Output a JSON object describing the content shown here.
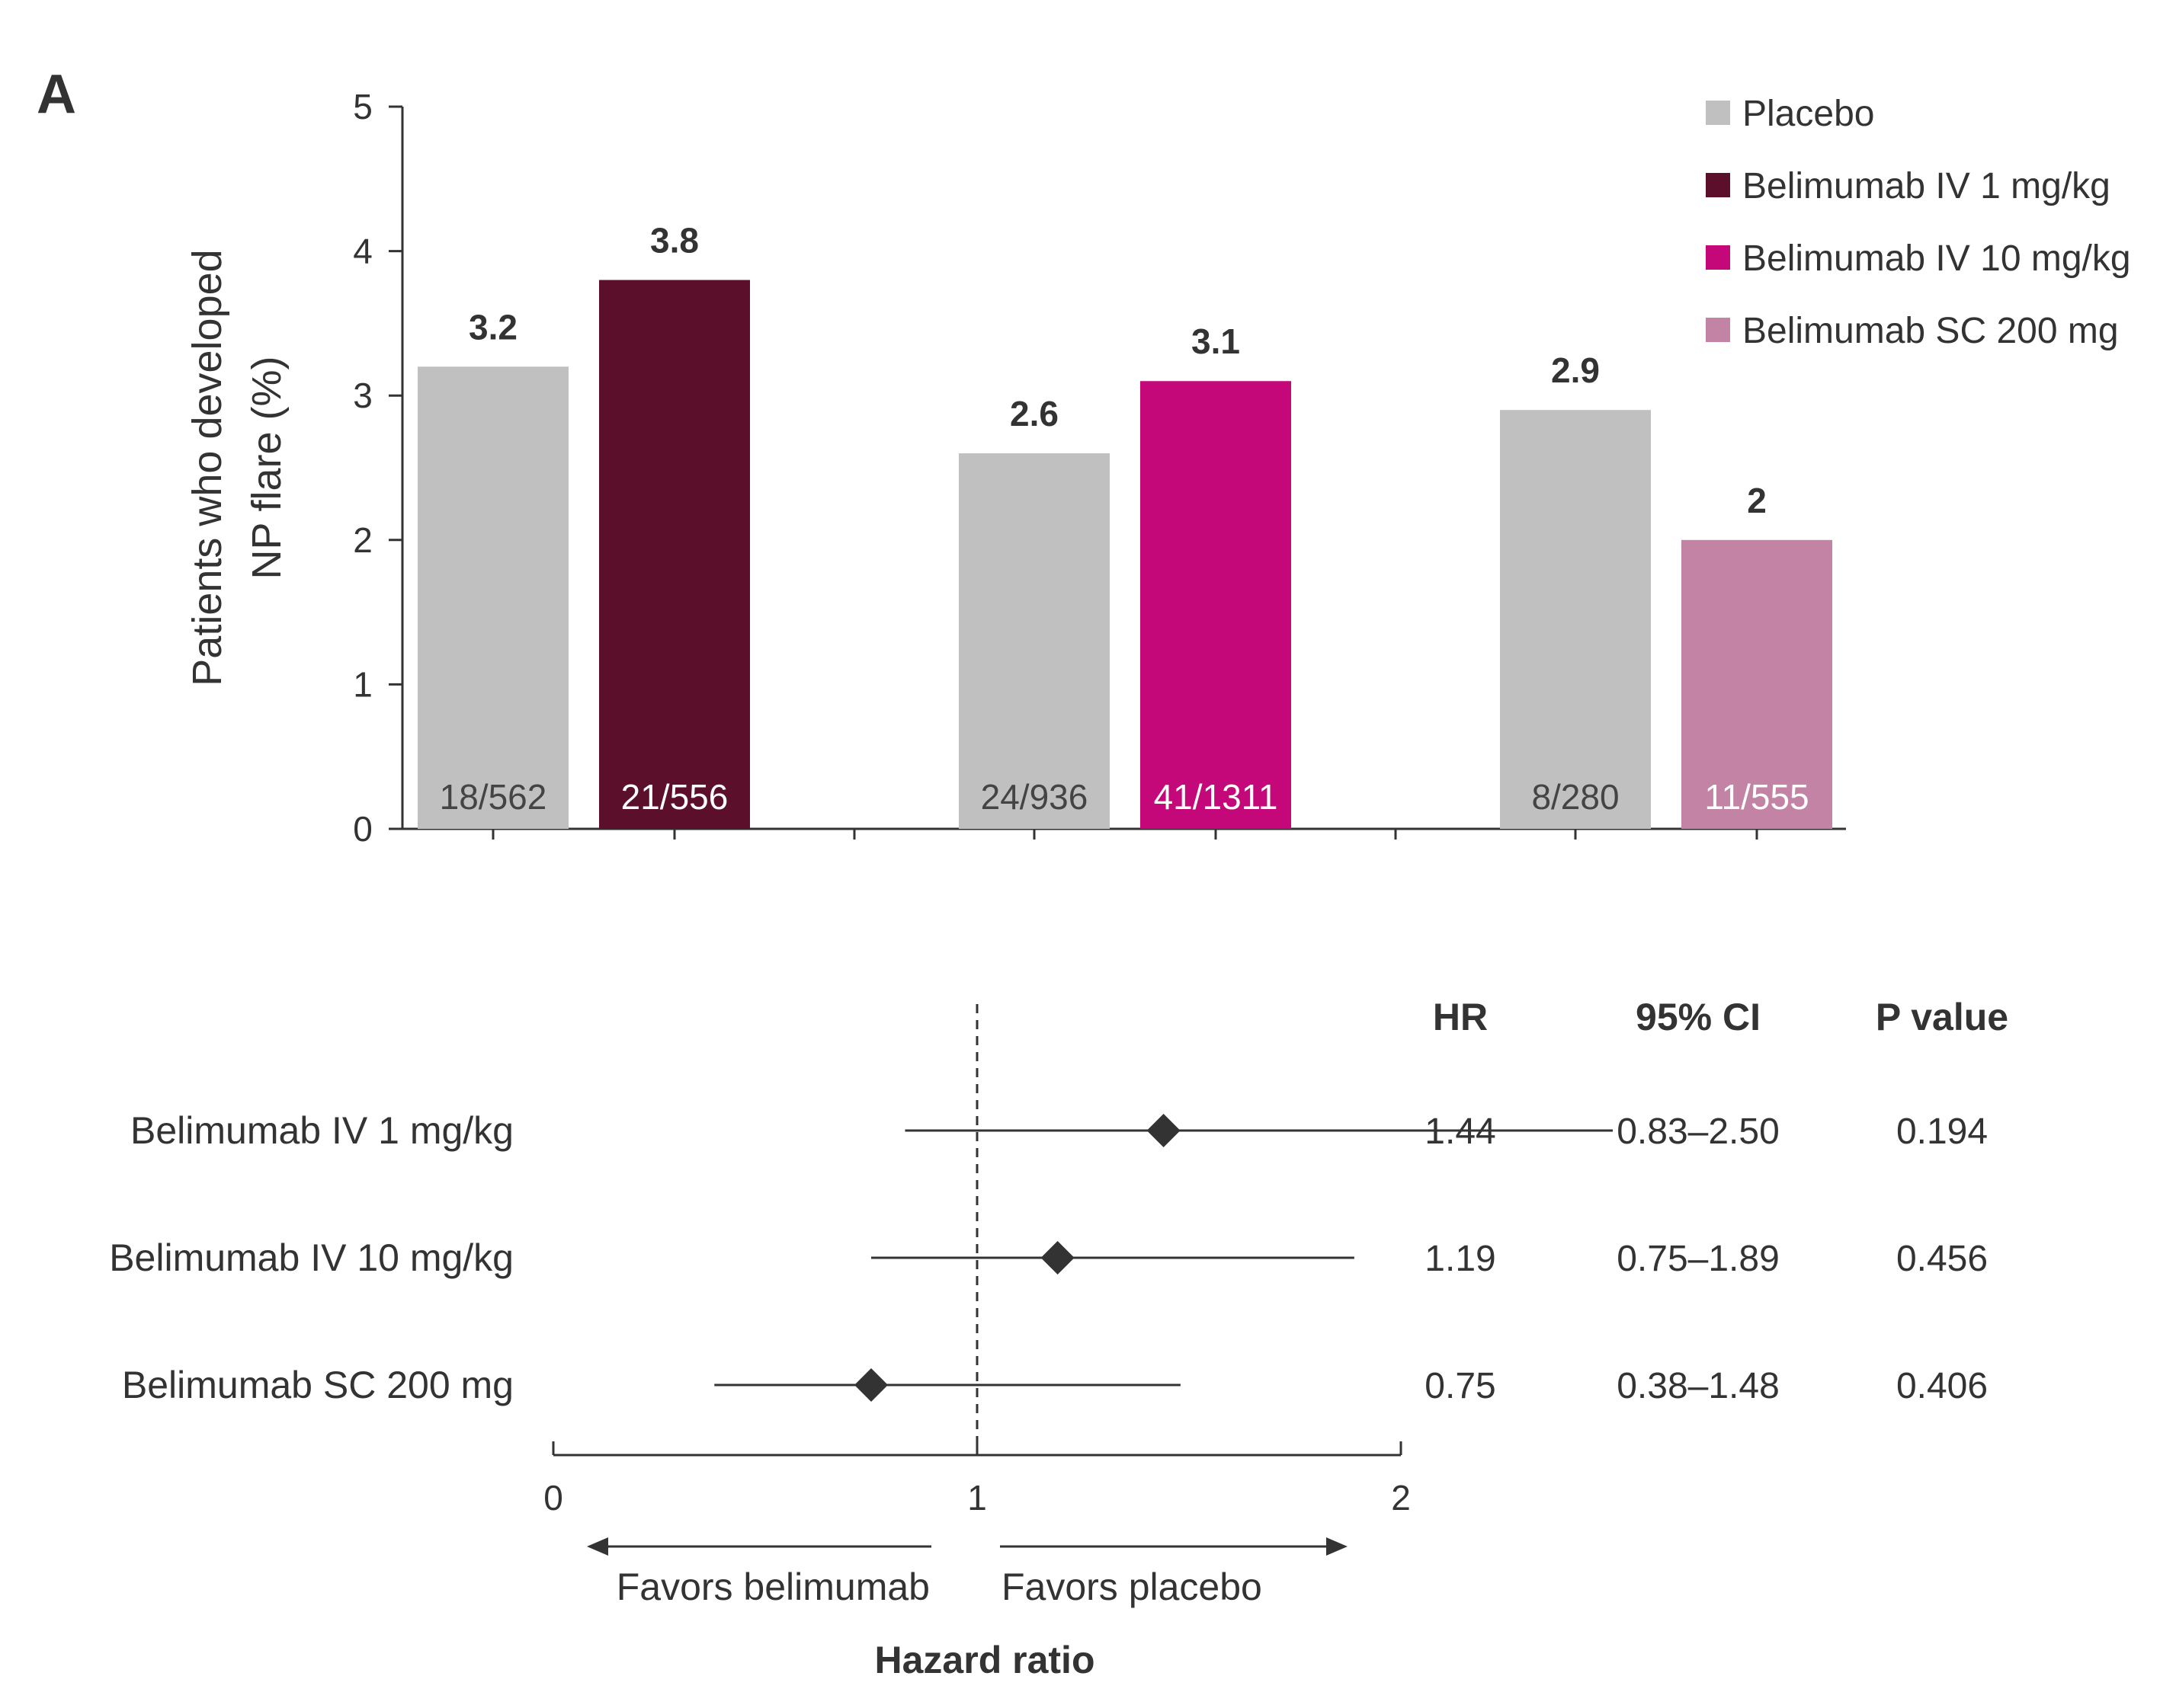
{
  "panel_label": "A",
  "chart_data": [
    {
      "type": "bar",
      "ylabel_lines": [
        "Patients who developed",
        "NP flare (%)"
      ],
      "ylim": [
        0,
        5
      ],
      "yticks": [
        0,
        1,
        2,
        3,
        4,
        5
      ],
      "legend": {
        "placement": "top-right",
        "items": [
          {
            "name": "Placebo",
            "color": "#c0c0c0"
          },
          {
            "name": "Belimumab IV 1 mg/kg",
            "color": "#5c0f2a"
          },
          {
            "name": "Belimumab IV 10 mg/kg",
            "color": "#c4087a"
          },
          {
            "name": "Belimumab SC 200 mg",
            "color": "#c283a4"
          }
        ]
      },
      "groups": [
        {
          "bars": [
            {
              "series": "Placebo",
              "value": 3.2,
              "value_label": "3.2",
              "n_label": "18/562",
              "color": "#c0c0c0",
              "n_color": "#444444"
            },
            {
              "series": "Belimumab IV 1 mg/kg",
              "value": 3.8,
              "value_label": "3.8",
              "n_label": "21/556",
              "color": "#5c0f2a",
              "n_color": "#ffffff"
            }
          ]
        },
        {
          "bars": [
            {
              "series": "Placebo",
              "value": 2.6,
              "value_label": "2.6",
              "n_label": "24/936",
              "color": "#c0c0c0",
              "n_color": "#444444"
            },
            {
              "series": "Belimumab IV 10 mg/kg",
              "value": 3.1,
              "value_label": "3.1",
              "n_label": "41/1311",
              "color": "#c4087a",
              "n_color": "#ffffff"
            }
          ]
        },
        {
          "bars": [
            {
              "series": "Placebo",
              "value": 2.9,
              "value_label": "2.9",
              "n_label": "8/280",
              "color": "#c0c0c0",
              "n_color": "#444444"
            },
            {
              "series": "Belimumab SC 200 mg",
              "value": 2.0,
              "value_label": "2",
              "n_label": "11/555",
              "color": "#c283a4",
              "n_color": "#ffffff"
            }
          ]
        }
      ]
    },
    {
      "type": "forest",
      "xlabel": "Hazard ratio",
      "xlim": [
        0,
        2
      ],
      "xticks": [
        "0",
        "1",
        "2"
      ],
      "reference_line": 1,
      "favors_left": "Favors belimumab",
      "favors_right": "Favors placebo",
      "columns": [
        "HR",
        "95% CI",
        "P value"
      ],
      "rows": [
        {
          "label": "Belimumab IV 1 mg/kg",
          "hr": 1.44,
          "ci_low": 0.83,
          "ci_high": 2.5,
          "hr_text": "1.44",
          "ci_text": "0.83–2.50",
          "p_text": "0.194"
        },
        {
          "label": "Belimumab IV 10 mg/kg",
          "hr": 1.19,
          "ci_low": 0.75,
          "ci_high": 1.89,
          "hr_text": "1.19",
          "ci_text": "0.75–1.89",
          "p_text": "0.456"
        },
        {
          "label": "Belimumab SC 200 mg",
          "hr": 0.75,
          "ci_low": 0.38,
          "ci_high": 1.48,
          "hr_text": "0.75",
          "ci_text": "0.38–1.48",
          "p_text": "0.406"
        }
      ],
      "marker_color": "#333333"
    }
  ]
}
